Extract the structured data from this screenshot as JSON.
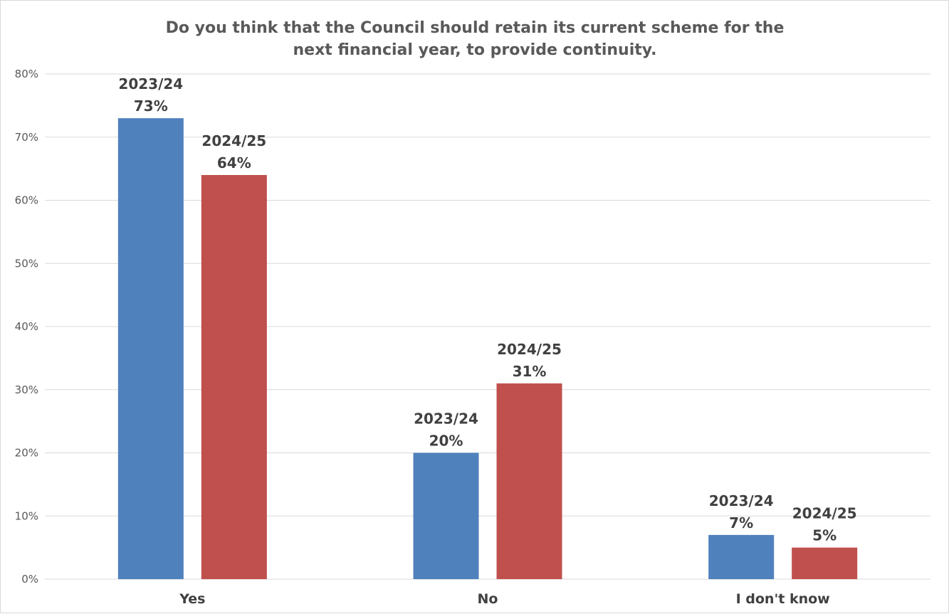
{
  "chart_data": {
    "type": "bar",
    "title_lines": [
      "Do you think that the Council should retain its current scheme for the",
      "next financial year, to provide continuity."
    ],
    "categories": [
      "Yes",
      "No",
      "I don't know"
    ],
    "series": [
      {
        "name": "2023/24",
        "color": "#4f81bd",
        "values": [
          73,
          20,
          7
        ]
      },
      {
        "name": "2024/25",
        "color": "#c0504d",
        "values": [
          64,
          31,
          5
        ]
      }
    ],
    "ylim": [
      0,
      80
    ],
    "yticks": [
      0,
      10,
      20,
      30,
      40,
      50,
      60,
      70,
      80
    ],
    "ytick_suffix": "%",
    "grid": true,
    "legend": "none"
  }
}
